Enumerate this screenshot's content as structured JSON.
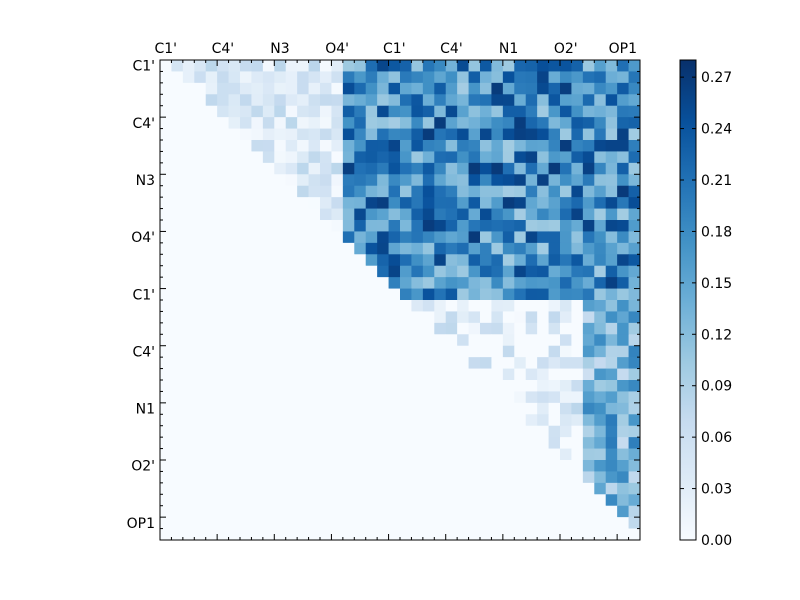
{
  "chart_data": {
    "type": "heatmap",
    "title": "",
    "xlabel": "",
    "ylabel": "",
    "grid": false,
    "n": 42,
    "x_tick_labels": [
      "C1'",
      "C4'",
      "N3",
      "O4'",
      "C1'",
      "C4'",
      "N1",
      "O2'",
      "OP1"
    ],
    "y_tick_labels": [
      "C1'",
      "C4'",
      "N3",
      "O4'",
      "C1'",
      "C4'",
      "N1",
      "O2'",
      "OP1"
    ],
    "tick_index_step": 5,
    "colorbar": {
      "colormap": "Blues",
      "range": [
        0,
        0.28
      ],
      "ticks": [
        "0.00",
        "0.03",
        "0.06",
        "0.09",
        "0.12",
        "0.15",
        "0.18",
        "0.21",
        "0.24",
        "0.27"
      ],
      "tick_values": [
        0.0,
        0.03,
        0.06,
        0.09,
        0.12,
        0.15,
        0.18,
        0.21,
        0.24,
        0.27
      ]
    },
    "colors": {
      "low": "#f7fbff",
      "mid": "#6baed6",
      "high": "#08306b"
    },
    "structure": "upper-triangular; lower triangle and diagonal are 0",
    "value_ranges": [
      {
        "rows": [
          0,
          20
        ],
        "cols": [
          1,
          15
        ],
        "range": [
          0.0,
          0.08
        ]
      },
      {
        "rows": [
          0,
          20
        ],
        "cols": [
          16,
          41
        ],
        "range": [
          0.1,
          0.27
        ]
      },
      {
        "rows": [
          21,
          41
        ],
        "cols": [
          22,
          41
        ],
        "range": [
          0.0,
          0.08
        ]
      },
      {
        "rows": [
          21,
          41
        ],
        "cols": [
          37,
          41
        ],
        "range": [
          0.08,
          0.2
        ]
      }
    ]
  }
}
